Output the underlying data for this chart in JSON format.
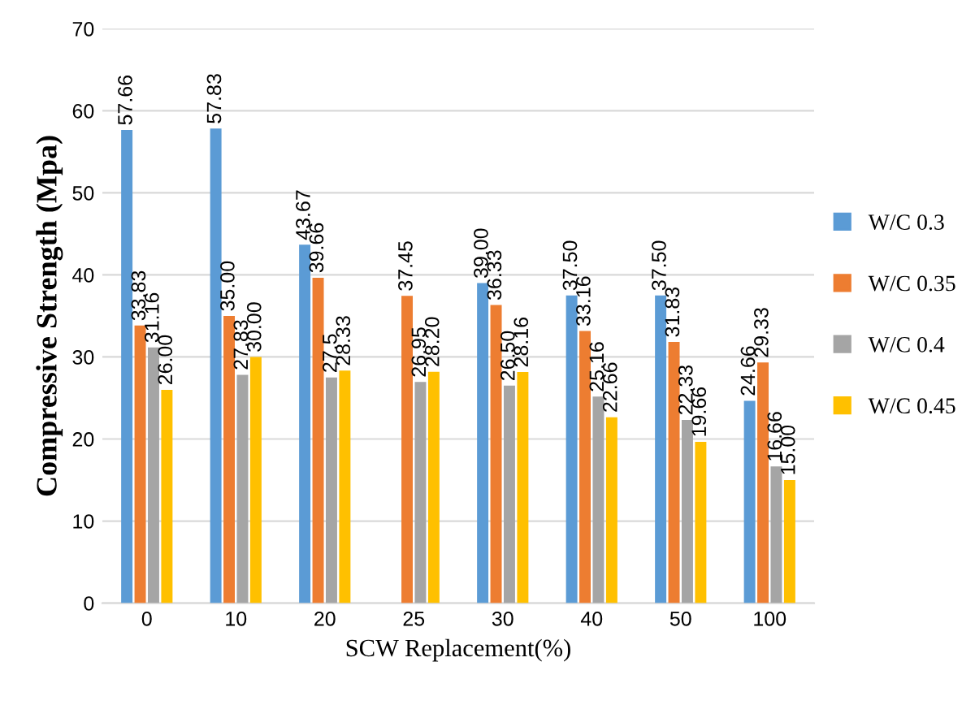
{
  "chart_data": {
    "type": "bar",
    "xlabel": "SCW Replacement(%)",
    "ylabel": "Compressive Strength (Mpa)",
    "categories": [
      "0",
      "10",
      "20",
      "25",
      "30",
      "40",
      "50",
      "100"
    ],
    "series": [
      {
        "name": "W/C 0.3",
        "color": "#5b9bd5",
        "values": [
          57.66,
          57.83,
          43.67,
          null,
          39.0,
          37.5,
          37.5,
          24.66
        ],
        "value_labels": [
          "57.66",
          "57.83",
          "43.67",
          null,
          "39.00",
          "37.50",
          "37.50",
          "24.66"
        ]
      },
      {
        "name": "W/C 0.35",
        "color": "#ed7d31",
        "values": [
          33.83,
          35.0,
          39.66,
          37.45,
          36.33,
          33.16,
          31.83,
          29.33
        ],
        "value_labels": [
          "33.83",
          "35.00",
          "39.66",
          "37.45",
          "36.33",
          "33.16",
          "31.83",
          "29.33"
        ]
      },
      {
        "name": "W/C 0.4",
        "color": "#a5a5a5",
        "values": [
          31.16,
          27.83,
          27.5,
          26.95,
          26.5,
          25.16,
          22.33,
          16.66
        ],
        "value_labels": [
          "31.16",
          "27.83",
          "27.5",
          "26.95",
          "26.50",
          "25.16",
          "22.33",
          "16.66"
        ]
      },
      {
        "name": "W/C 0.45",
        "color": "#ffc000",
        "values": [
          26.0,
          30.0,
          28.33,
          28.2,
          28.16,
          22.66,
          19.66,
          15.0
        ],
        "value_labels": [
          "26.00",
          "30.00",
          "28.33",
          "28.20",
          "28.16",
          "22.66",
          "19.66",
          "15.00"
        ]
      }
    ],
    "ylim": [
      0,
      70
    ],
    "yticks": [
      0,
      10,
      20,
      30,
      40,
      50,
      60,
      70
    ],
    "grid": "y",
    "legend": "right"
  }
}
